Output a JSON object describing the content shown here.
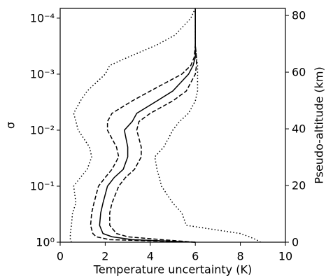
{
  "chart_data": {
    "type": "line",
    "xlabel": "Temperature uncertainty (K)",
    "ylabel": "σ",
    "y2label": "Pseudo-altitude (km)",
    "yscale": "log",
    "xlim": [
      0,
      10
    ],
    "xticks": [
      0,
      2,
      4,
      6,
      8,
      10
    ],
    "ylim": [
      1,
      6.7e-05
    ],
    "yticks": [
      {
        "value": 1,
        "label": "10⁰"
      },
      {
        "value": 0.1,
        "label": "10⁻¹"
      },
      {
        "value": 0.01,
        "label": "10⁻²"
      },
      {
        "value": 0.001,
        "label": "10⁻³"
      },
      {
        "value": 0.0001,
        "label": "10⁻⁴"
      }
    ],
    "y2lim": [
      0,
      82.5
    ],
    "y2ticks": [
      0,
      20,
      40,
      60,
      80
    ],
    "y": [
      1,
      0.9,
      0.8,
      0.7,
      0.5,
      0.3,
      0.2,
      0.1,
      0.07,
      0.05,
      0.03,
      0.02,
      0.01,
      0.007,
      0.005,
      0.003,
      0.002,
      0.001,
      0.0007,
      0.0005,
      0.0003,
      0.0002,
      0.0001,
      6.7e-05
    ],
    "series": [
      {
        "color": "#000000",
        "linestyle": "dotted",
        "values": [
          0.5,
          0.45,
          0.45,
          0.45,
          0.5,
          0.55,
          0.7,
          0.6,
          0.9,
          1.2,
          1.4,
          1.3,
          0.8,
          0.7,
          0.6,
          0.9,
          1.2,
          2.0,
          2.2,
          3.0,
          4.3,
          5.1,
          5.8,
          6.0
        ]
      },
      {
        "color": "#000000",
        "linestyle": "dashed",
        "values": [
          6.0,
          2.2,
          1.6,
          1.45,
          1.35,
          1.4,
          1.5,
          1.7,
          2.0,
          2.3,
          2.6,
          2.5,
          2.1,
          2.1,
          2.3,
          3.2,
          4.0,
          5.4,
          5.8,
          5.95,
          6.0,
          6.0,
          6.0,
          6.0
        ]
      },
      {
        "color": "#000000",
        "linestyle": "solid",
        "values": [
          6.0,
          3.2,
          2.3,
          1.9,
          1.75,
          1.8,
          1.9,
          2.1,
          2.4,
          2.8,
          3.0,
          3.0,
          2.85,
          3.2,
          3.4,
          4.3,
          5.0,
          5.7,
          5.9,
          6.0,
          6.0,
          6.0,
          6.0,
          6.0
        ]
      },
      {
        "color": "#000000",
        "linestyle": "dashed",
        "values": [
          6.0,
          4.5,
          3.0,
          2.5,
          2.2,
          2.2,
          2.3,
          2.6,
          2.9,
          3.3,
          3.6,
          3.6,
          3.4,
          3.5,
          4.0,
          5.0,
          5.6,
          6.0,
          6.05,
          6.05,
          6.0,
          6.0,
          6.0,
          6.0
        ]
      },
      {
        "color": "#000000",
        "linestyle": "dotted",
        "values": [
          8.9,
          8.7,
          8.4,
          8.0,
          5.6,
          5.4,
          5.0,
          4.5,
          4.4,
          4.3,
          4.2,
          4.6,
          5.0,
          5.3,
          5.7,
          6.0,
          6.1,
          6.1,
          6.1,
          6.05,
          6.0,
          6.0,
          6.0,
          6.0
        ]
      }
    ]
  }
}
